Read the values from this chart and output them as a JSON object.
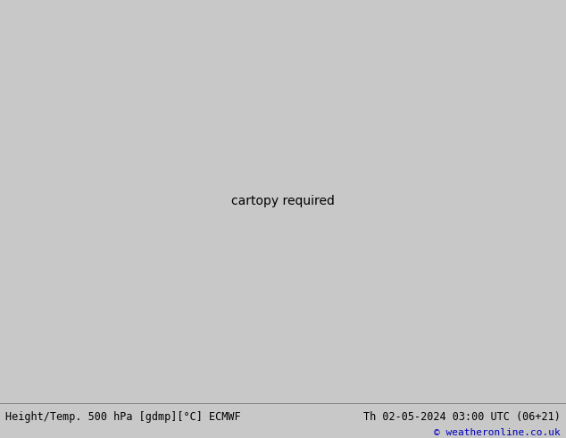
{
  "title_left": "Height/Temp. 500 hPa [gdmp][°C] ECMWF",
  "title_right": "Th 02-05-2024 03:00 UTC (06+21)",
  "copyright": "© weatheronline.co.uk",
  "fig_width": 6.34,
  "fig_height": 4.9,
  "dpi": 100,
  "bottom_bar_height": 0.082,
  "bg_color": "#c8c8c8",
  "sea_color": "#d8d8d8",
  "land_color": "#c0c0c0",
  "green_fill": "#c8f0a0",
  "bottom_bar_color": "#e8e8e8",
  "title_color": "#000000",
  "copyright_color": "#0000bb",
  "contour_black": "#000000",
  "contour_cyan": "#00bbbb",
  "contour_blue": "#0044cc",
  "contour_orange": "#dd8800",
  "contour_green_lt": "#88cc00",
  "contour_red": "#cc2200",
  "map_extent": [
    -175,
    -50,
    15,
    80
  ],
  "proj_lon0": -100,
  "proj_lat0": 50
}
